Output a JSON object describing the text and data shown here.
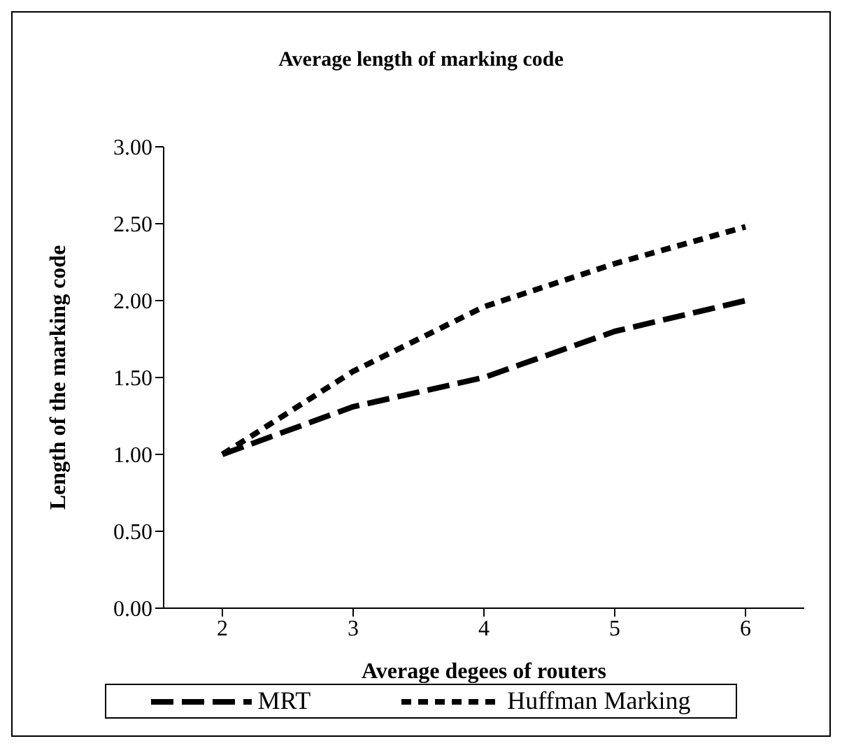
{
  "chart_data": {
    "type": "line",
    "title": "Average length of marking code",
    "xlabel": "Average degees of routers",
    "ylabel": "Length of the marking code",
    "categories": [
      "2",
      "3",
      "4",
      "5",
      "6"
    ],
    "series": [
      {
        "name": "MRT",
        "color": "#000000",
        "line_style": "dashed",
        "values": [
          1.0,
          1.31,
          1.5,
          1.8,
          2.0
        ]
      },
      {
        "name": "Huffman Marking",
        "color": "#000000",
        "line_style": "dotted",
        "values": [
          1.0,
          1.54,
          1.96,
          2.24,
          2.48
        ]
      }
    ],
    "ylim": [
      0,
      3
    ],
    "yticks": [
      {
        "value": 0,
        "label": "0.00"
      },
      {
        "value": 0.5,
        "label": "0.50"
      },
      {
        "value": 1,
        "label": "1.00"
      },
      {
        "value": 1.5,
        "label": "1.50"
      },
      {
        "value": 2,
        "label": "2.00"
      },
      {
        "value": 2.5,
        "label": "2.50"
      },
      {
        "value": 3,
        "label": "3.00"
      }
    ],
    "grid": false,
    "legend": "bottom",
    "marker": "none"
  }
}
